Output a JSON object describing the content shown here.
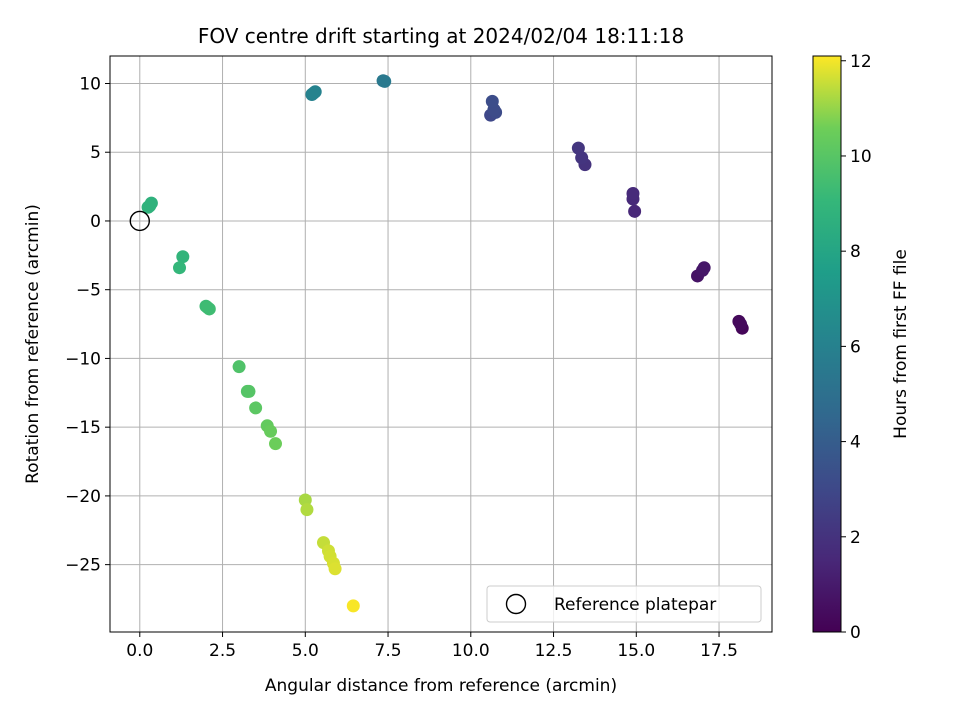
{
  "chart_data": {
    "type": "scatter",
    "title": "FOV centre drift starting at 2024/02/04 18:11:18",
    "xlabel": "Angular distance from reference (arcmin)",
    "ylabel": "Rotation from reference (arcmin)",
    "xlim": [
      -0.9,
      19.1
    ],
    "ylim": [
      -29.9,
      12.0
    ],
    "xticks": [
      0.0,
      2.5,
      5.0,
      7.5,
      10.0,
      12.5,
      15.0,
      17.5
    ],
    "xtick_labels": [
      "0.0",
      "2.5",
      "5.0",
      "7.5",
      "10.0",
      "12.5",
      "15.0",
      "17.5"
    ],
    "yticks": [
      10,
      5,
      0,
      -5,
      -10,
      -15,
      -20,
      -25
    ],
    "ytick_labels": [
      "10",
      "5",
      "0",
      "−5",
      "−10",
      "−15",
      "−20",
      "−25"
    ],
    "grid": true,
    "colormap": "viridis",
    "colorbar": {
      "label": "Hours from first FF file",
      "range": [
        0,
        12.1
      ],
      "ticks": [
        0,
        2,
        4,
        6,
        8,
        10,
        12
      ],
      "tick_labels": [
        "0",
        "2",
        "4",
        "6",
        "8",
        "10",
        "12"
      ]
    },
    "legend": {
      "position": "lower-right",
      "entries": [
        "Reference platepar"
      ]
    },
    "reference_point": {
      "x": 0.0,
      "y": 0.0
    },
    "series": [
      {
        "points": [
          {
            "x": 18.2,
            "y": -7.8,
            "hours": 0.2
          },
          {
            "x": 18.1,
            "y": -7.3,
            "hours": 0.3
          },
          {
            "x": 18.15,
            "y": -7.5,
            "hours": 0.35
          },
          {
            "x": 16.85,
            "y": -4.0,
            "hours": 0.7
          },
          {
            "x": 17.0,
            "y": -3.6,
            "hours": 0.8
          },
          {
            "x": 17.05,
            "y": -3.4,
            "hours": 0.85
          },
          {
            "x": 14.95,
            "y": 0.7,
            "hours": 1.5
          },
          {
            "x": 14.9,
            "y": 1.6,
            "hours": 1.6
          },
          {
            "x": 14.9,
            "y": 2.0,
            "hours": 1.65
          },
          {
            "x": 13.45,
            "y": 4.1,
            "hours": 2.0
          },
          {
            "x": 13.35,
            "y": 4.6,
            "hours": 2.1
          },
          {
            "x": 13.25,
            "y": 5.3,
            "hours": 2.15
          },
          {
            "x": 10.6,
            "y": 7.7,
            "hours": 3.0
          },
          {
            "x": 10.75,
            "y": 7.9,
            "hours": 3.1
          },
          {
            "x": 10.7,
            "y": 8.1,
            "hours": 3.15
          },
          {
            "x": 10.65,
            "y": 8.7,
            "hours": 3.2
          },
          {
            "x": 7.35,
            "y": 10.2,
            "hours": 5.5
          },
          {
            "x": 7.4,
            "y": 10.15,
            "hours": 5.55
          },
          {
            "x": 5.2,
            "y": 9.2,
            "hours": 6.0
          },
          {
            "x": 5.3,
            "y": 9.4,
            "hours": 6.05
          },
          {
            "x": 5.25,
            "y": 9.3,
            "hours": 6.1
          },
          {
            "x": 0.35,
            "y": 1.3,
            "hours": 8.7
          },
          {
            "x": 0.25,
            "y": 1.0,
            "hours": 8.8
          },
          {
            "x": 0.3,
            "y": 1.1,
            "hours": 8.75
          },
          {
            "x": 1.3,
            "y": -2.6,
            "hours": 8.9
          },
          {
            "x": 1.2,
            "y": -3.4,
            "hours": 9.0
          },
          {
            "x": 2.0,
            "y": -6.2,
            "hours": 9.3
          },
          {
            "x": 2.1,
            "y": -6.4,
            "hours": 9.4
          },
          {
            "x": 2.05,
            "y": -6.3,
            "hours": 9.35
          },
          {
            "x": 3.0,
            "y": -10.6,
            "hours": 9.8
          },
          {
            "x": 3.25,
            "y": -12.4,
            "hours": 9.9
          },
          {
            "x": 3.3,
            "y": -12.4,
            "hours": 9.95
          },
          {
            "x": 3.5,
            "y": -13.6,
            "hours": 10.1
          },
          {
            "x": 3.85,
            "y": -14.9,
            "hours": 10.3
          },
          {
            "x": 3.95,
            "y": -15.3,
            "hours": 10.4
          },
          {
            "x": 4.1,
            "y": -16.2,
            "hours": 10.5
          },
          {
            "x": 5.0,
            "y": -20.3,
            "hours": 11.2
          },
          {
            "x": 5.05,
            "y": -21.0,
            "hours": 11.3
          },
          {
            "x": 5.55,
            "y": -23.4,
            "hours": 11.5
          },
          {
            "x": 5.7,
            "y": -24.0,
            "hours": 11.6
          },
          {
            "x": 5.75,
            "y": -24.4,
            "hours": 11.65
          },
          {
            "x": 5.85,
            "y": -24.9,
            "hours": 11.7
          },
          {
            "x": 5.9,
            "y": -25.3,
            "hours": 11.75
          },
          {
            "x": 6.45,
            "y": -28.0,
            "hours": 12.05
          }
        ]
      }
    ]
  }
}
